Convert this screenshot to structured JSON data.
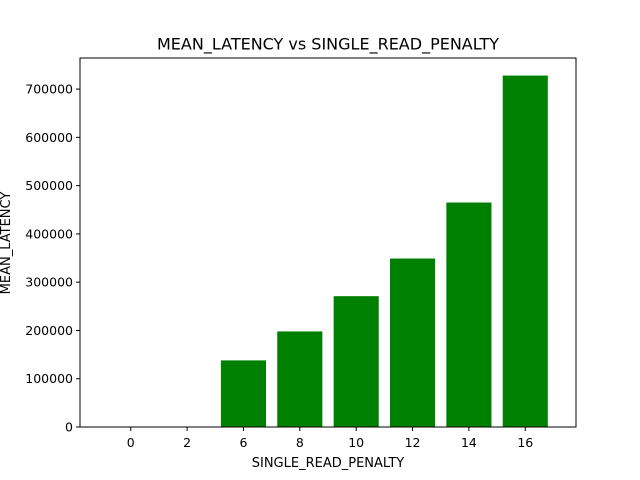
{
  "chart_data": {
    "type": "bar",
    "title": "MEAN_LATENCY vs SINGLE_READ_PENALTY",
    "xlabel": "SINGLE_READ_PENALTY",
    "ylabel": "MEAN_LATENCY",
    "categories": [
      "0",
      "2",
      "6",
      "8",
      "10",
      "12",
      "14",
      "16"
    ],
    "values": [
      0,
      0,
      138000,
      198000,
      271000,
      349000,
      465000,
      728000
    ],
    "ylim": [
      0,
      764400
    ],
    "yticks": [
      0,
      100000,
      200000,
      300000,
      400000,
      500000,
      600000,
      700000
    ],
    "ytick_labels": [
      "0",
      "100000",
      "200000",
      "300000",
      "400000",
      "500000",
      "600000",
      "700000"
    ],
    "bar_color": "#008000",
    "grid": false,
    "legend": "none"
  }
}
